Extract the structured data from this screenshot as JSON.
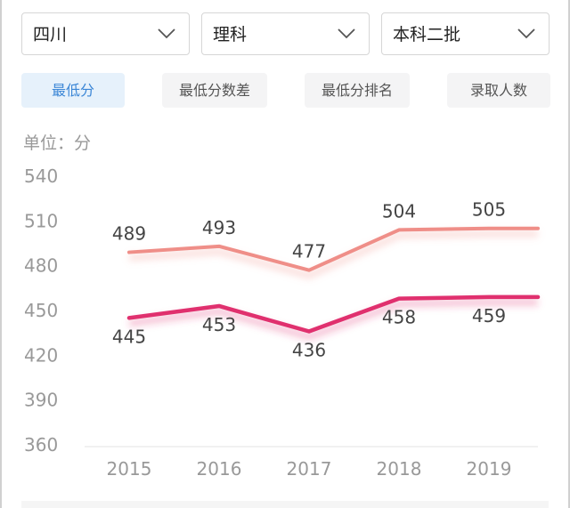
{
  "filters": {
    "province": "四川",
    "subject": "理科",
    "batch": "本科二批"
  },
  "tabs": [
    {
      "label": "最低分",
      "active": true
    },
    {
      "label": "最低分数差",
      "active": false
    },
    {
      "label": "最低分排名",
      "active": false
    },
    {
      "label": "录取人数",
      "active": false
    }
  ],
  "unit_label": "单位：分",
  "colors": {
    "accent": "#3b86d6",
    "upper_line": "#ef8e88",
    "lower_line": "#e0306e"
  },
  "chart_data": {
    "type": "line",
    "categories": [
      "2015",
      "2016",
      "2017",
      "2018",
      "2019"
    ],
    "ylim": [
      360,
      540
    ],
    "yticks": [
      "540",
      "510",
      "480",
      "450",
      "420",
      "390",
      "360"
    ],
    "series": [
      {
        "values": [
          489,
          493,
          477,
          504,
          505
        ],
        "labels": [
          "489",
          "493",
          "477",
          "504",
          "505"
        ],
        "color": "#ef8e88",
        "label_position": "above"
      },
      {
        "values": [
          445,
          453,
          436,
          458,
          459
        ],
        "labels": [
          "445",
          "453",
          "436",
          "458",
          "459"
        ],
        "color": "#e0306e",
        "label_position": "below"
      }
    ],
    "grid": false,
    "legend": "none"
  }
}
